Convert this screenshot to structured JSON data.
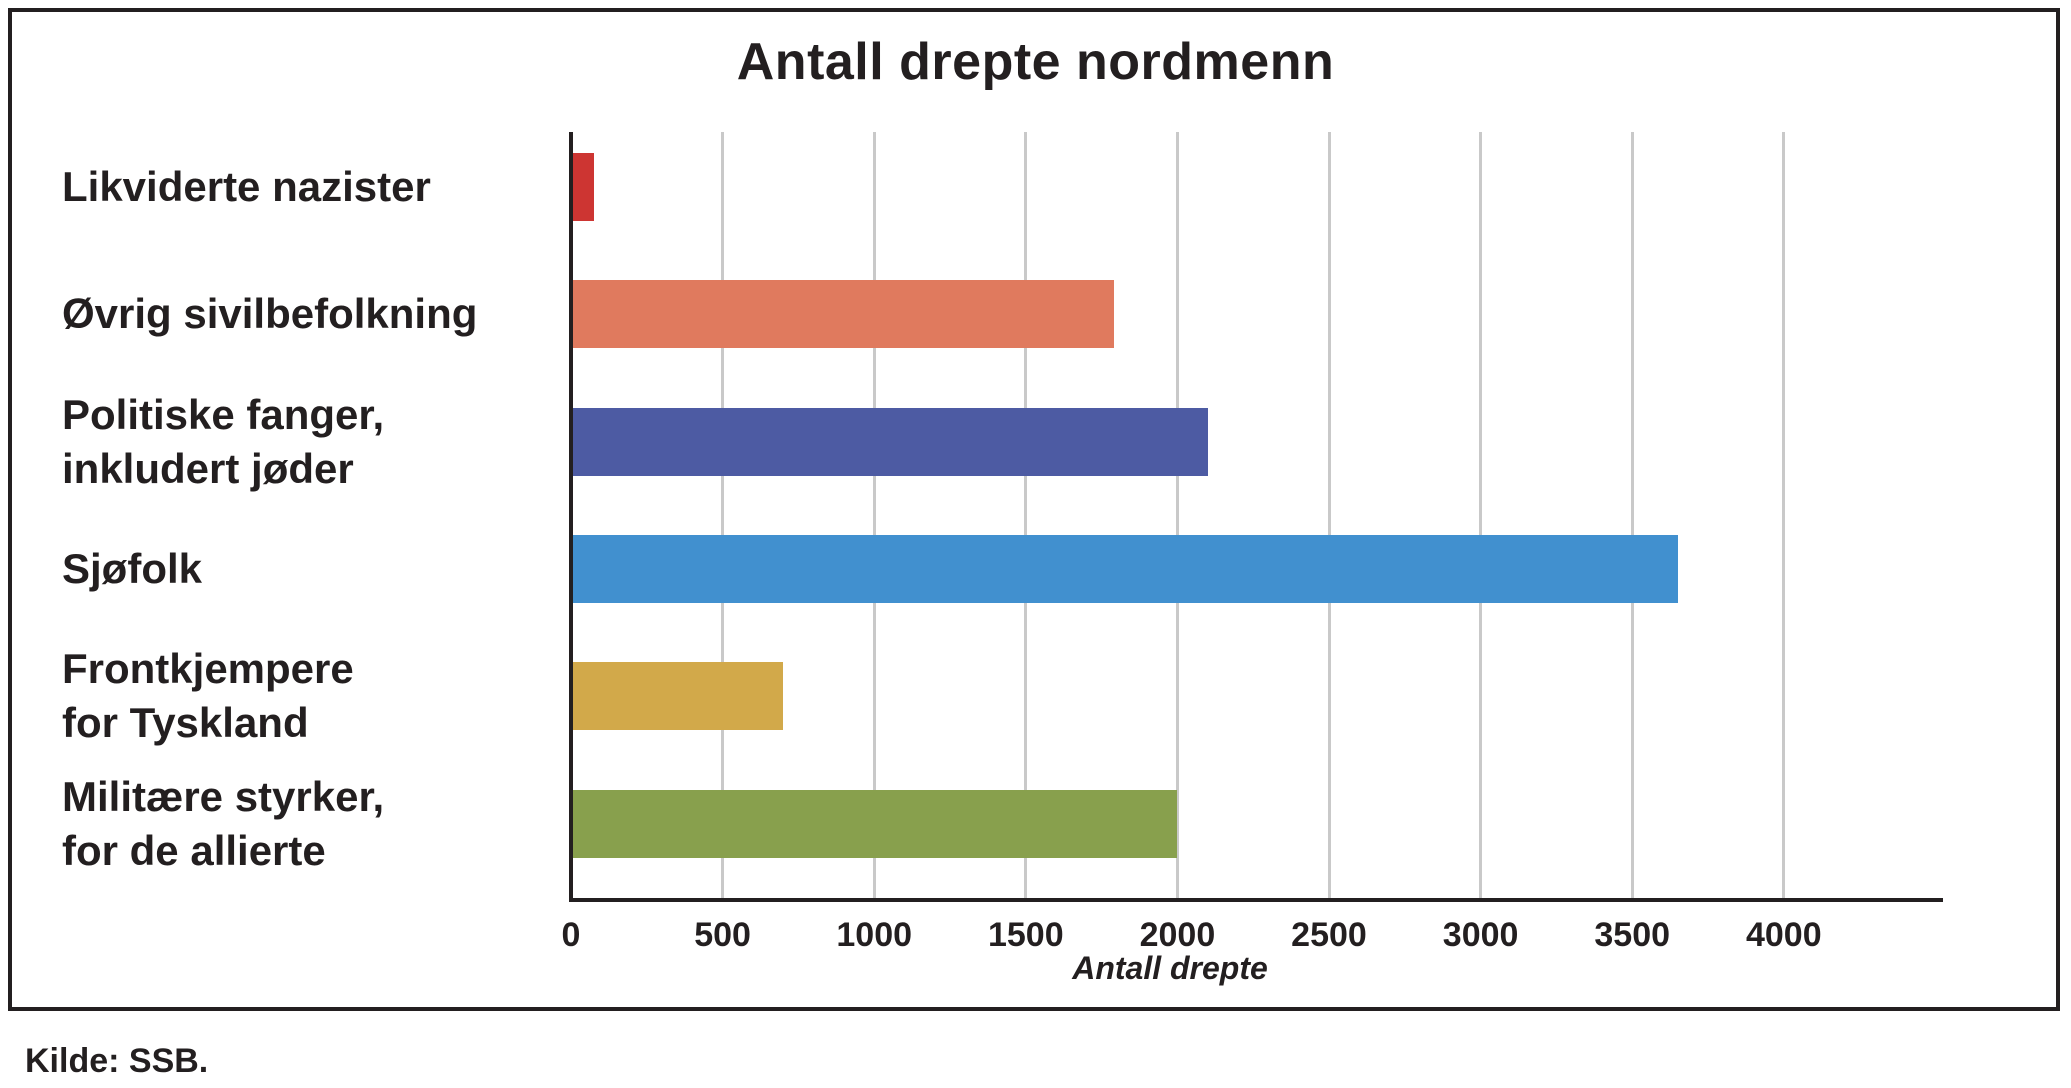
{
  "figure": {
    "title": "Antall drepte nordmenn",
    "source": "Kilde: SSB."
  },
  "chart_data": {
    "type": "bar",
    "orientation": "horizontal",
    "title": "Antall drepte nordmenn",
    "xlabel": "Antall drepte",
    "source": "Kilde: SSB.",
    "categories": [
      "Likviderte nazister",
      "Øvrig sivilbefolkning",
      "Politiske fanger,\ninkludert jøder",
      "Sjøfolk",
      "Frontkjempere\nfor Tyskland",
      "Militære styrker,\nfor de allierte"
    ],
    "values": [
      75,
      1790,
      2100,
      3650,
      700,
      2000
    ],
    "bar_colors": [
      "#cd3532",
      "#e07a5e",
      "#4d5ba3",
      "#4190cf",
      "#d2a94a",
      "#88a04d"
    ],
    "xticks": [
      0,
      500,
      1000,
      1500,
      2000,
      2500,
      3000,
      3500,
      4000
    ],
    "xlim": [
      0,
      4525
    ],
    "grid": true,
    "gridline_color": "#c9c9c9",
    "axis_color": "#231f20",
    "legend": "none"
  }
}
